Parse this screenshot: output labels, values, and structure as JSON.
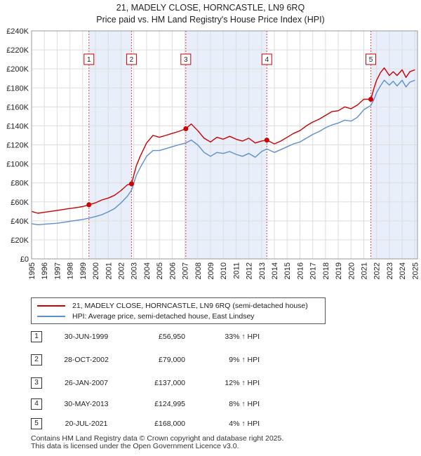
{
  "title_line1": "21, MADELY CLOSE, HORNCASTLE, LN9 6RQ",
  "title_line2": "Price paid vs. HM Land Registry's House Price Index (HPI)",
  "colors": {
    "property": "#cc0000",
    "hpi": "#5b8fd0",
    "shade": "#e8eefa",
    "grid": "#dddddd"
  },
  "chart_data": {
    "type": "line",
    "ylim": [
      0,
      240000
    ],
    "yticks": [
      0,
      20000,
      40000,
      60000,
      80000,
      100000,
      120000,
      140000,
      160000,
      180000,
      200000,
      220000,
      240000
    ],
    "ytick_labels": [
      "£0",
      "£20K",
      "£40K",
      "£60K",
      "£80K",
      "£100K",
      "£120K",
      "£140K",
      "£160K",
      "£180K",
      "£200K",
      "£220K",
      "£240K"
    ],
    "xlim": [
      1995,
      2025.2
    ],
    "xticks": [
      1995,
      1996,
      1997,
      1998,
      1999,
      2000,
      2001,
      2002,
      2003,
      2004,
      2005,
      2006,
      2007,
      2008,
      2009,
      2010,
      2011,
      2012,
      2013,
      2014,
      2015,
      2016,
      2017,
      2018,
      2019,
      2020,
      2021,
      2022,
      2023,
      2024,
      2025
    ],
    "xtick_labels": [
      "1995",
      "1996",
      "1997",
      "1998",
      "1999",
      "2000",
      "2001",
      "2002",
      "2003",
      "2004",
      "2005",
      "2006",
      "2007",
      "2008",
      "2009",
      "2010",
      "2011",
      "2012",
      "2013",
      "2014",
      "2015",
      "2016",
      "2017",
      "2018",
      "2019",
      "2020",
      "2021",
      "2022",
      "2023",
      "2024",
      "2025"
    ],
    "grid": true,
    "shaded_spans": [
      [
        1999.49,
        2002.82
      ],
      [
        2007.07,
        2013.41
      ],
      [
        2021.55,
        2025.2
      ]
    ],
    "series": [
      {
        "name": "21, MADELY CLOSE, HORNCASTLE, LN9 6RQ (semi-detached house)",
        "x": [
          1995.0,
          1995.5,
          1996.0,
          1996.5,
          1997.0,
          1997.5,
          1998.0,
          1998.5,
          1999.0,
          1999.49,
          2000.0,
          2000.5,
          2001.0,
          2001.5,
          2002.0,
          2002.5,
          2002.82,
          2003.2,
          2003.5,
          2004.0,
          2004.5,
          2005.0,
          2005.5,
          2006.0,
          2006.5,
          2007.07,
          2007.5,
          2008.0,
          2008.5,
          2009.0,
          2009.5,
          2010.0,
          2010.5,
          2011.0,
          2011.5,
          2012.0,
          2012.5,
          2013.0,
          2013.41,
          2014.0,
          2014.5,
          2015.0,
          2015.5,
          2016.0,
          2016.5,
          2017.0,
          2017.5,
          2018.0,
          2018.5,
          2019.0,
          2019.5,
          2020.0,
          2020.5,
          2021.0,
          2021.55,
          2021.8,
          2022.0,
          2022.3,
          2022.6,
          2023.0,
          2023.3,
          2023.6,
          2024.0,
          2024.3,
          2024.6,
          2025.0
        ],
        "values": [
          50000,
          48000,
          49000,
          50000,
          51000,
          52000,
          53000,
          54000,
          55000,
          56950,
          59000,
          62000,
          64000,
          67000,
          72000,
          78000,
          79000,
          98000,
          108000,
          122000,
          130000,
          128000,
          130000,
          132000,
          134000,
          137000,
          142000,
          135000,
          127000,
          123000,
          128000,
          126000,
          129000,
          126000,
          124000,
          127000,
          122000,
          124000,
          124995,
          121000,
          124000,
          128000,
          132000,
          135000,
          140000,
          144000,
          147000,
          151000,
          155000,
          156000,
          160000,
          158000,
          162000,
          168000,
          168000,
          180000,
          188000,
          196000,
          201000,
          193000,
          197000,
          193000,
          199000,
          191000,
          197000,
          199000
        ]
      },
      {
        "name": "HPI: Average price, semi-detached house, East Lindsey",
        "x": [
          1995.0,
          1995.5,
          1996.0,
          1996.5,
          1997.0,
          1997.5,
          1998.0,
          1998.5,
          1999.0,
          1999.49,
          2000.0,
          2000.5,
          2001.0,
          2001.5,
          2002.0,
          2002.5,
          2002.82,
          2003.2,
          2003.5,
          2004.0,
          2004.5,
          2005.0,
          2005.5,
          2006.0,
          2006.5,
          2007.07,
          2007.5,
          2008.0,
          2008.5,
          2009.0,
          2009.5,
          2010.0,
          2010.5,
          2011.0,
          2011.5,
          2012.0,
          2012.5,
          2013.0,
          2013.41,
          2014.0,
          2014.5,
          2015.0,
          2015.5,
          2016.0,
          2016.5,
          2017.0,
          2017.5,
          2018.0,
          2018.5,
          2019.0,
          2019.5,
          2020.0,
          2020.5,
          2021.0,
          2021.55,
          2021.8,
          2022.0,
          2022.3,
          2022.6,
          2023.0,
          2023.3,
          2023.6,
          2024.0,
          2024.3,
          2024.6,
          2025.0
        ],
        "values": [
          37000,
          36000,
          36500,
          37000,
          37500,
          38500,
          39500,
          40500,
          41500,
          42800,
          44500,
          46500,
          49500,
          53000,
          59000,
          66000,
          72300,
          88000,
          96000,
          108000,
          114000,
          114000,
          116000,
          118000,
          120000,
          122000,
          125000,
          120000,
          112000,
          108000,
          112000,
          111000,
          113000,
          110000,
          108000,
          111000,
          107000,
          113000,
          115700,
          112000,
          115000,
          118000,
          121000,
          123000,
          127000,
          131000,
          134000,
          138000,
          141000,
          143000,
          146000,
          145000,
          149000,
          157000,
          161500,
          168000,
          175000,
          182000,
          188000,
          183000,
          187000,
          182000,
          188000,
          181000,
          186000,
          188000
        ]
      }
    ],
    "markers": [
      {
        "label": "1",
        "x": 1999.49,
        "value": 56950
      },
      {
        "label": "2",
        "x": 2002.82,
        "value": 79000
      },
      {
        "label": "3",
        "x": 2007.07,
        "value": 137000
      },
      {
        "label": "4",
        "x": 2013.41,
        "value": 124995
      },
      {
        "label": "5",
        "x": 2021.55,
        "value": 168000
      }
    ]
  },
  "legend": {
    "property_label": "21, MADELY CLOSE, HORNCASTLE, LN9 6RQ (semi-detached house)",
    "hpi_label": "HPI: Average price, semi-detached house, East Lindsey"
  },
  "sales": [
    {
      "num": "1",
      "date": "30-JUN-1999",
      "price": "£56,950",
      "hpi": "33% ↑ HPI"
    },
    {
      "num": "2",
      "date": "28-OCT-2002",
      "price": "£79,000",
      "hpi": "9% ↑ HPI"
    },
    {
      "num": "3",
      "date": "26-JAN-2007",
      "price": "£137,000",
      "hpi": "12% ↑ HPI"
    },
    {
      "num": "4",
      "date": "30-MAY-2013",
      "price": "£124,995",
      "hpi": "8% ↑ HPI"
    },
    {
      "num": "5",
      "date": "20-JUL-2021",
      "price": "£168,000",
      "hpi": "4% ↑ HPI"
    }
  ],
  "footer": {
    "line1": "Contains HM Land Registry data © Crown copyright and database right 2025.",
    "line2": "This data is licensed under the Open Government Licence v3.0."
  }
}
